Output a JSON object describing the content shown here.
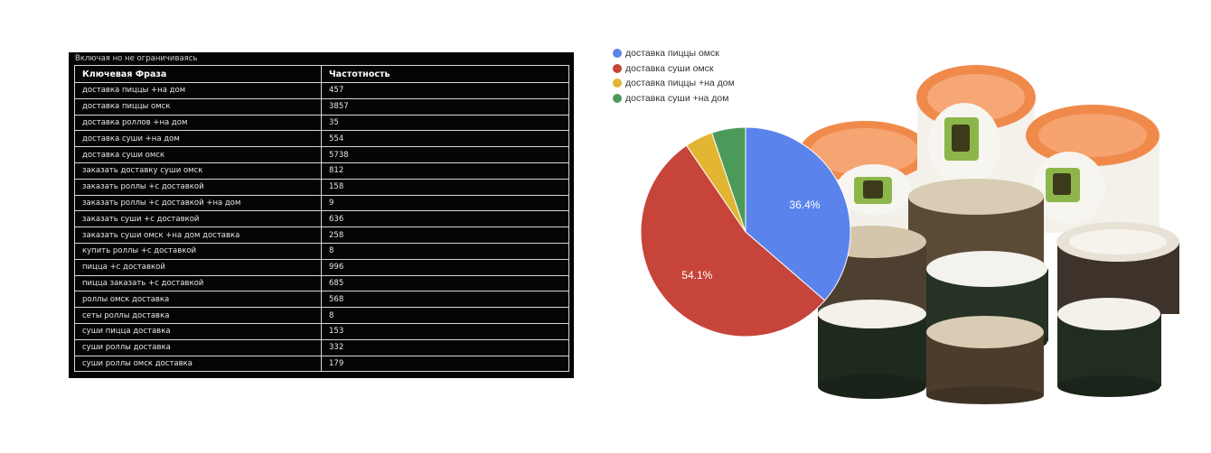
{
  "table": {
    "caption": "Включая но не ограничиваясь",
    "headers": [
      "Ключевая Фраза",
      "Частотность"
    ],
    "rows": [
      [
        "доставка пиццы +на дом",
        "457"
      ],
      [
        "доставка пиццы омск",
        "3857"
      ],
      [
        "доставка роллов +на дом",
        "35"
      ],
      [
        "доставка суши +на дом",
        "554"
      ],
      [
        "доставка суши омск",
        "5738"
      ],
      [
        "заказать доставку суши омск",
        "812"
      ],
      [
        "заказать роллы +с доставкой",
        "158"
      ],
      [
        "заказать роллы +с доставкой +на дом",
        "9"
      ],
      [
        "заказать суши +с доставкой",
        "636"
      ],
      [
        "заказать суши омск +на дом доставка",
        "258"
      ],
      [
        "купить роллы +с доставкой",
        "8"
      ],
      [
        "пицца +с доставкой",
        "996"
      ],
      [
        "пицца заказать +с доставкой",
        "685"
      ],
      [
        "роллы омск доставка",
        "568"
      ],
      [
        "сеты роллы доставка",
        "8"
      ],
      [
        "суши пицца доставка",
        "153"
      ],
      [
        "суши роллы доставка",
        "332"
      ],
      [
        "суши роллы омск доставка",
        "179"
      ]
    ]
  },
  "chart_data": {
    "type": "pie",
    "slices": [
      {
        "label": "доставка пиццы омск",
        "value": 3857,
        "percent_label": "36.4%",
        "color": "#5b83ec"
      },
      {
        "label": "доставка суши омск",
        "value": 5738,
        "percent_label": "54.1%",
        "color": "#c6443a"
      },
      {
        "label": "доставка пиццы +на дом",
        "value": 457,
        "percent_label": "",
        "color": "#e2b633"
      },
      {
        "label": "доставка суши +на дом",
        "value": 554,
        "percent_label": "",
        "color": "#4c9a5a"
      }
    ],
    "legend_position": "top-left"
  },
  "image": {
    "icon": "sushi-rolls-photo"
  }
}
